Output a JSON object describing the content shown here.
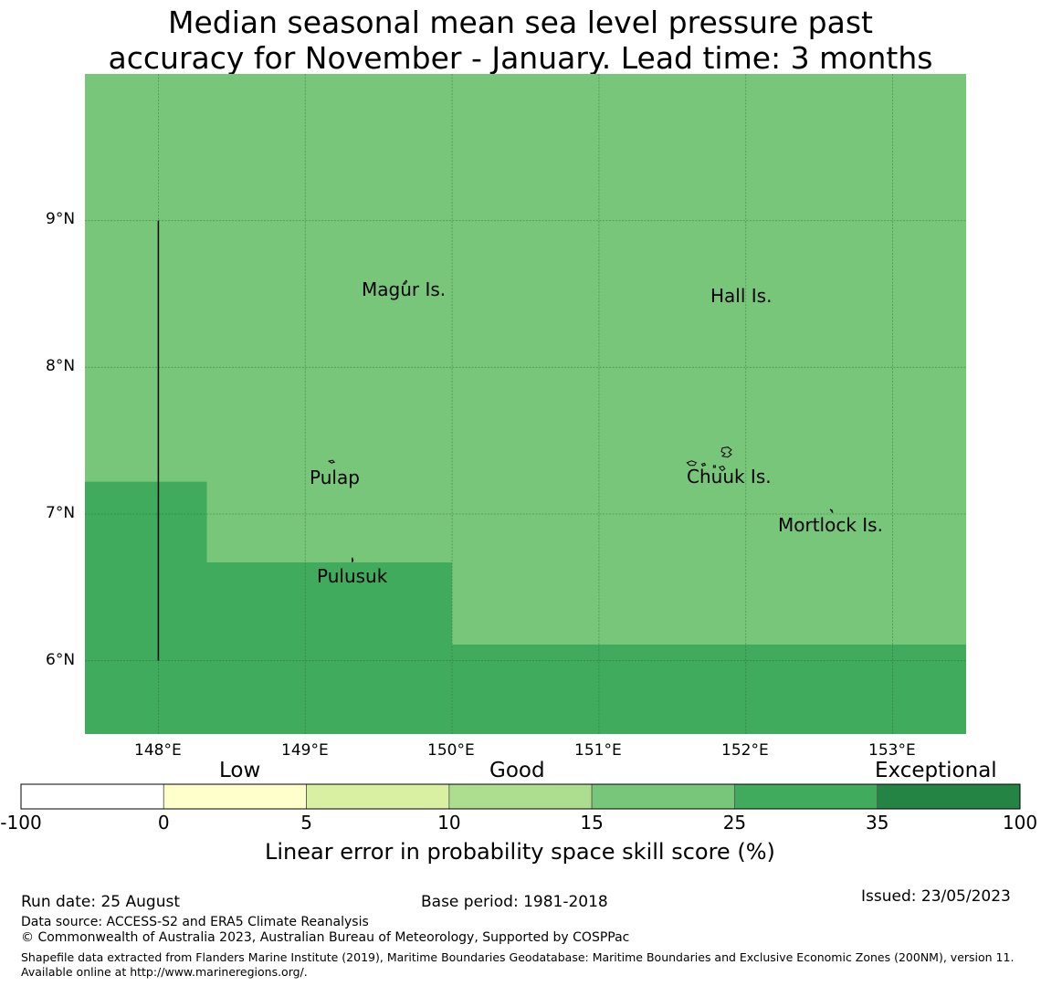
{
  "title": {
    "line1": "Median seasonal mean sea level pressure past",
    "line2": "accuracy for November - January. Lead time: 3 months"
  },
  "map": {
    "lat_ticks": [
      "9°N",
      "8°N",
      "7°N",
      "6°N"
    ],
    "lon_ticks": [
      "148°E",
      "149°E",
      "150°E",
      "151°E",
      "152°E",
      "153°E"
    ],
    "extent": {
      "lon": [
        147.5,
        153.5
      ],
      "lat": [
        5.5,
        10.0
      ]
    },
    "places": [
      {
        "name": "Magur Is.",
        "lon": 149.68,
        "lat": 8.58
      },
      {
        "name": "Hall Is.",
        "lon": 151.97,
        "lat": 8.52
      },
      {
        "name": "Pulap",
        "lon": 149.2,
        "lat": 7.35
      },
      {
        "name": "Chuuk Is.",
        "lon": 151.85,
        "lat": 7.38
      },
      {
        "name": "Mortlock Is.",
        "lon": 152.58,
        "lat": 6.98
      },
      {
        "name": "Pulusuk",
        "lon": 149.32,
        "lat": 6.68
      }
    ],
    "skill_regions": [
      {
        "category": "25-35",
        "lon": [
          147.5,
          148.33
        ],
        "lat": [
          5.5,
          7.22
        ]
      },
      {
        "category": "25-35",
        "lon": [
          148.33,
          150.0
        ],
        "lat": [
          5.5,
          6.67
        ]
      },
      {
        "category": "25-35",
        "lon": [
          150.0,
          153.5
        ],
        "lat": [
          5.5,
          6.11
        ]
      }
    ],
    "background_category": "15-25",
    "boundary_line": {
      "lon": 148.0,
      "lat": [
        6.0,
        9.0
      ]
    }
  },
  "colorbar": {
    "categories": [
      "Low",
      "Good",
      "Exceptional"
    ],
    "ticks": [
      "-100",
      "0",
      "5",
      "10",
      "15",
      "25",
      "35",
      "100"
    ],
    "colors": [
      "#ffffff",
      "#ffffcc",
      "#d9f0a3",
      "#addd8e",
      "#78c679",
      "#41ab5d",
      "#238443"
    ],
    "label": "Linear error in probability space skill score (%)"
  },
  "footer": {
    "run_date": "Run date: 25 August",
    "base_period": "Base period: 1981-2018",
    "issued": "Issued: 23/05/2023",
    "data_source": "Data source: ACCESS-S2 and ERA5 Climate Reanalysis",
    "copyright": "© Commonwealth of Australia 2023, Australian Bureau of Meteorology, Supported by COSPPac",
    "shapefile": "Shapefile data extracted from Flanders Marine Institute (2019), Maritime Boundaries Geodatabase: Maritime Boundaries and Exclusive Economic Zones (200NM), version 11. Available online at http://www.marineregions.org/."
  }
}
